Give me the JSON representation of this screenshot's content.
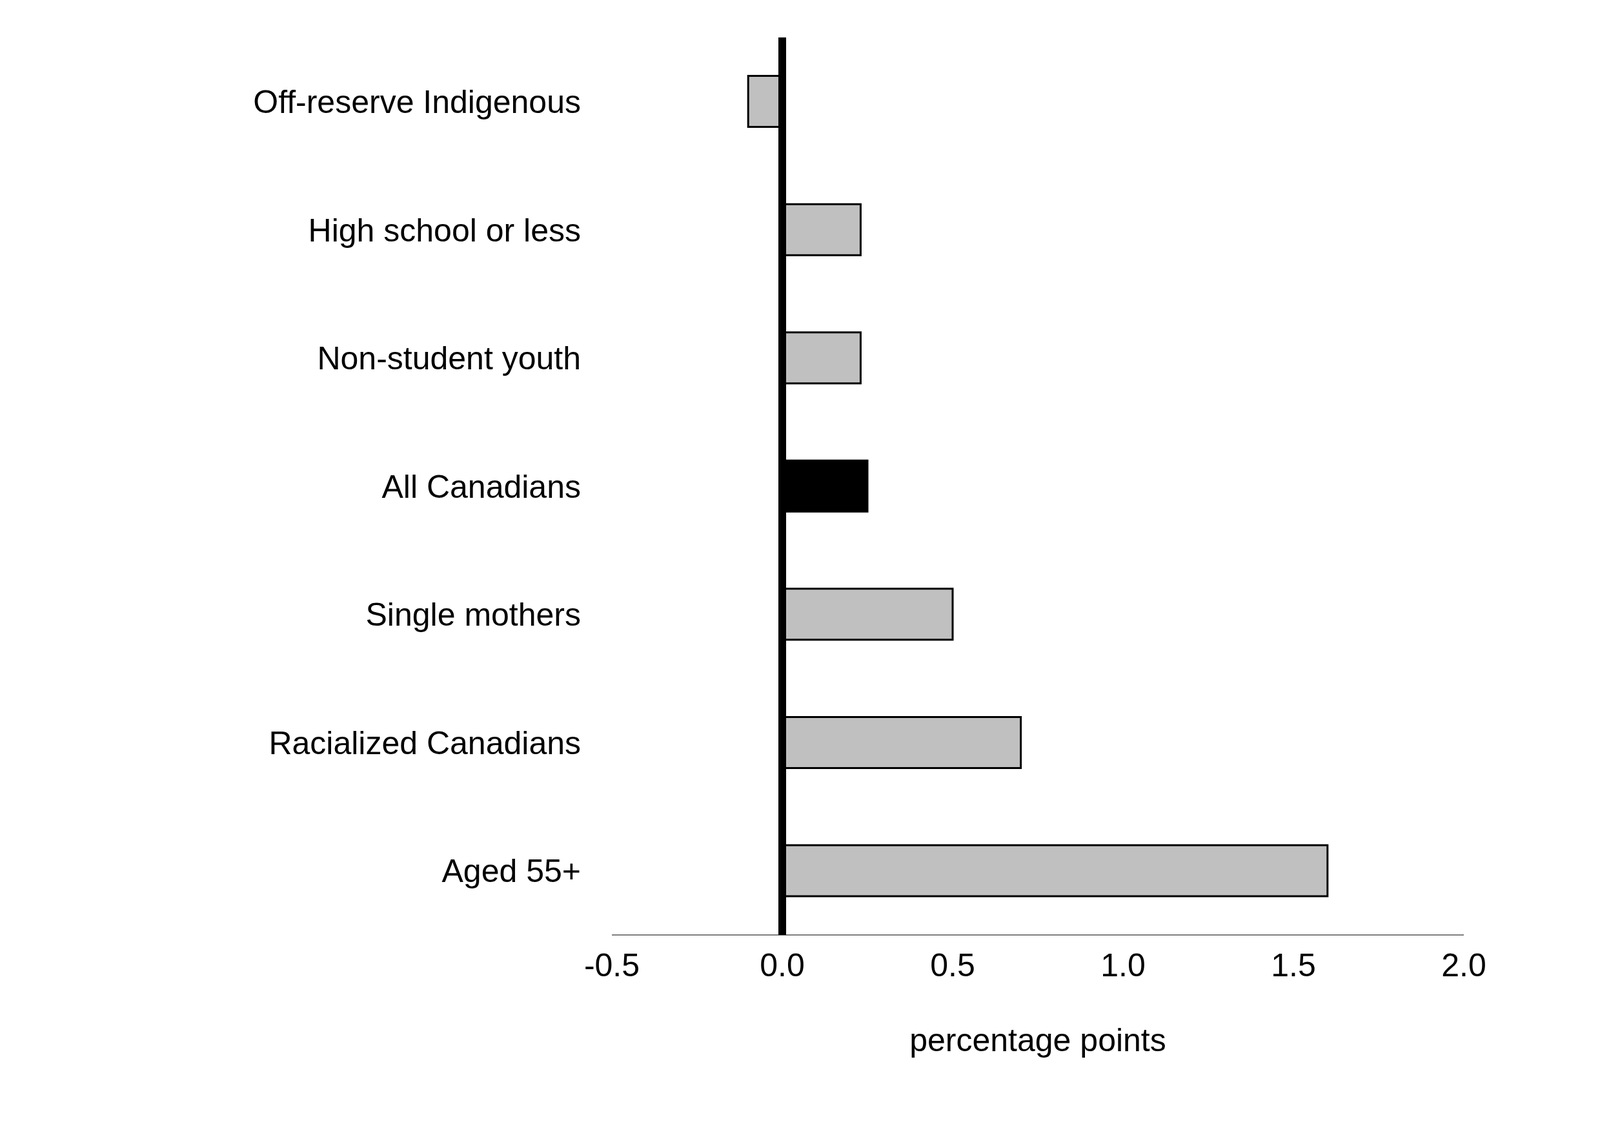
{
  "chart_data": {
    "type": "bar",
    "orientation": "horizontal",
    "categories": [
      "Off-reserve Indigenous",
      "High school or less",
      "Non-student youth",
      "All Canadians",
      "Single mothers",
      "Racialized Canadians",
      "Aged 55+"
    ],
    "values": [
      -0.1,
      0.23,
      0.23,
      0.25,
      0.5,
      0.7,
      1.6
    ],
    "colors": [
      "#c0c0c0",
      "#c0c0c0",
      "#c0c0c0",
      "#000000",
      "#c0c0c0",
      "#c0c0c0",
      "#c0c0c0"
    ],
    "xlabel": "percentage points",
    "xlim": [
      -0.5,
      2.0
    ],
    "xticks": [
      -0.5,
      {
        "value": 0,
        "label": "0.0"
      },
      0.5,
      {
        "value": 1,
        "label": "1.0"
      },
      1.5,
      {
        "value": 2,
        "label": "2.0"
      }
    ],
    "grid": false
  }
}
